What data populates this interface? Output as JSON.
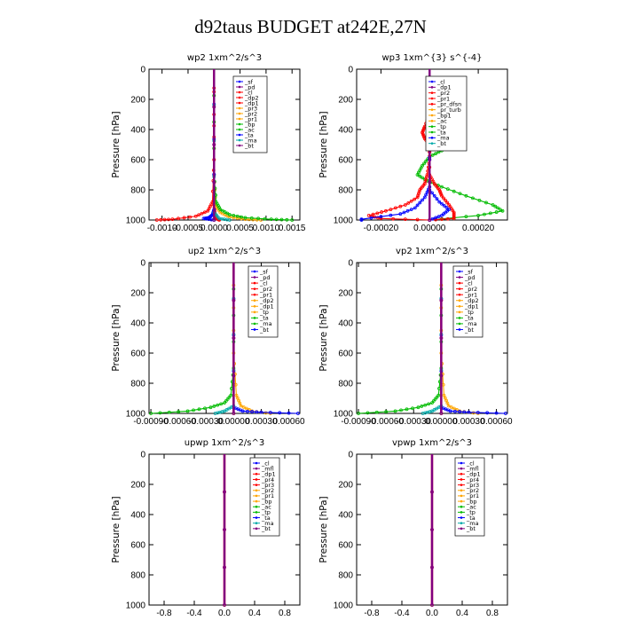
{
  "title": "d92taus  BUDGET at242E,27N",
  "chart_data": [
    {
      "type": "line",
      "title": "wp2   1xm^2/s^3",
      "ylabel": "Pressure [hPa]",
      "ylim": [
        1000,
        0
      ],
      "y_ticks": [
        "0",
        "200",
        "400",
        "600",
        "800",
        "1000"
      ],
      "xlim": [
        -0.00125,
        0.00165
      ],
      "x_ticks": [
        {
          "value": -0.001,
          "label": "-0.0010"
        },
        {
          "value": -0.0005,
          "label": "-0.0005"
        },
        {
          "value": 0.0,
          "label": "0.0000"
        },
        {
          "value": 0.0005,
          "label": "0.0005"
        },
        {
          "value": 0.001,
          "label": "0.0010"
        },
        {
          "value": 0.0015,
          "label": "0.0015"
        }
      ],
      "legend": [
        "_sf",
        "_pd",
        "_cl",
        "_dp2",
        "_dp1",
        "_pr3",
        "_pr2",
        "_pr1",
        "_bp",
        "_ac",
        "_ta",
        "_ma",
        "_bt"
      ],
      "series": [
        {
          "name": "_sf",
          "color": "#ff0000",
          "points": [
            [
              0,
              0
            ],
            [
              0,
              500
            ],
            [
              0,
              900
            ],
            [
              2e-05,
              960
            ],
            [
              5e-05,
              990
            ],
            [
              0.0001,
              1000
            ]
          ]
        },
        {
          "name": "_dp2",
          "color": "#ff0000",
          "points": [
            [
              0,
              0
            ],
            [
              0,
              600
            ],
            [
              -3e-05,
              880
            ],
            [
              -0.00012,
              940
            ],
            [
              -0.00035,
              975
            ],
            [
              -0.0008,
              995
            ],
            [
              -0.0011,
              1000
            ]
          ]
        },
        {
          "name": "_pr2",
          "color": "#ffa500",
          "points": [
            [
              0,
              0
            ],
            [
              0,
              700
            ],
            [
              3e-05,
              900
            ],
            [
              0.00012,
              950
            ],
            [
              0.0003,
              980
            ],
            [
              0.0006,
              995
            ],
            [
              0.0009,
              1000
            ]
          ]
        },
        {
          "name": "_bp",
          "color": "#00bb00",
          "points": [
            [
              0,
              0
            ],
            [
              0,
              700
            ],
            [
              4e-05,
              880
            ],
            [
              0.00012,
              930
            ],
            [
              0.0003,
              965
            ],
            [
              0.0006,
              985
            ],
            [
              0.0011,
              995
            ],
            [
              0.0015,
              1000
            ]
          ]
        },
        {
          "name": "_ac",
          "color": "#0000ff",
          "points": [
            [
              0,
              0
            ],
            [
              0,
              930
            ],
            [
              -3e-05,
              965
            ],
            [
              -0.0001,
              985
            ],
            [
              -0.0002,
              990
            ],
            [
              0,
              1000
            ]
          ]
        },
        {
          "name": "_ta",
          "color": "#00aaaa",
          "points": [
            [
              0,
              0
            ],
            [
              0,
              950
            ],
            [
              0.0001,
              990
            ],
            [
              0.0003,
              1000
            ]
          ]
        },
        {
          "name": "_bt",
          "color": "#800080",
          "points": [
            [
              0,
              0
            ],
            [
              0,
              1000
            ]
          ]
        }
      ]
    },
    {
      "type": "line",
      "title": "wp3   1xm^{3} s^{-4}",
      "ylabel": "Pressure [hPa]",
      "ylim": [
        1000,
        0
      ],
      "y_ticks": [
        "0",
        "200",
        "400",
        "600",
        "800",
        "1000"
      ],
      "xlim": [
        -0.0003,
        0.00032
      ],
      "x_ticks": [
        {
          "value": -0.0002,
          "label": "-0.00020"
        },
        {
          "value": 0.0,
          "label": "0.00000"
        },
        {
          "value": 0.0002,
          "label": "0.00020"
        }
      ],
      "legend": [
        "_cl",
        "_dp1",
        "_pr2",
        "_pr1",
        "_pr_dfsn",
        "_pr_turb",
        "_bp1",
        "_ac",
        "_tp",
        "_ta",
        "_ma",
        "_bt"
      ],
      "series": [
        {
          "name": "_bp1",
          "color": "#00bb00",
          "points": [
            [
              0,
              0
            ],
            [
              0,
              380
            ],
            [
              4e-05,
              440
            ],
            [
              8e-05,
              480
            ],
            [
              0.0001,
              500
            ],
            [
              5e-05,
              540
            ],
            [
              0,
              580
            ],
            [
              -3e-05,
              640
            ],
            [
              -5e-05,
              700
            ],
            [
              -1e-05,
              740
            ],
            [
              5e-05,
              780
            ],
            [
              0.00015,
              840
            ],
            [
              0.00026,
              900
            ],
            [
              0.0003,
              940
            ],
            [
              0.0002,
              970
            ],
            [
              0,
              1000
            ]
          ]
        },
        {
          "name": "_pr2",
          "color": "#ff0000",
          "points": [
            [
              0,
              0
            ],
            [
              0,
              300
            ],
            [
              -2e-05,
              380
            ],
            [
              -3e-05,
              420
            ],
            [
              -2e-05,
              460
            ],
            [
              0,
              500
            ],
            [
              0,
              600
            ],
            [
              -1e-05,
              700
            ],
            [
              -2e-05,
              760
            ],
            [
              -4e-05,
              800
            ],
            [
              -5e-05,
              850
            ],
            [
              -0.0001,
              900
            ],
            [
              -0.00018,
              940
            ],
            [
              -0.00025,
              970
            ],
            [
              -0.0002,
              990
            ],
            [
              0,
              1000
            ]
          ]
        },
        {
          "name": "_pr1",
          "color": "#ff0000",
          "points": [
            [
              0,
              0
            ],
            [
              0,
              300
            ],
            [
              2e-05,
              380
            ],
            [
              3e-05,
              420
            ],
            [
              2e-05,
              460
            ],
            [
              0,
              500
            ],
            [
              0,
              700
            ],
            [
              2e-05,
              760
            ],
            [
              4e-05,
              800
            ],
            [
              5e-05,
              840
            ],
            [
              8e-05,
              900
            ],
            [
              0.0001,
              950
            ],
            [
              0.0001,
              990
            ],
            [
              0,
              1000
            ]
          ]
        },
        {
          "name": "_ac",
          "color": "#0000ff",
          "points": [
            [
              0,
              0
            ],
            [
              0,
              780
            ],
            [
              -2e-05,
              850
            ],
            [
              -6e-05,
              920
            ],
            [
              -0.00012,
              960
            ],
            [
              -0.00028,
              995
            ],
            [
              -0.00028,
              1000
            ]
          ]
        },
        {
          "name": "_tp",
          "color": "#0000ff",
          "points": [
            [
              0,
              0
            ],
            [
              0,
              800
            ],
            [
              4e-05,
              880
            ],
            [
              8e-05,
              930
            ],
            [
              5e-05,
              970
            ],
            [
              0,
              1000
            ]
          ]
        },
        {
          "name": "_bt",
          "color": "#800080",
          "points": [
            [
              0,
              0
            ],
            [
              0,
              1000
            ]
          ]
        }
      ]
    },
    {
      "type": "line",
      "title": "up2   1xm^2/s^3",
      "ylabel": "Pressure [hPa]",
      "ylim": [
        1000,
        0
      ],
      "y_ticks": [
        "0",
        "200",
        "400",
        "600",
        "800",
        "1000"
      ],
      "xlim": [
        -0.00092,
        0.00072
      ],
      "x_ticks": [
        {
          "value": -0.0009,
          "label": "-0.00090"
        },
        {
          "value": -0.0006,
          "label": "-0.00060"
        },
        {
          "value": -0.0003,
          "label": "-0.00030"
        },
        {
          "value": 0.0,
          "label": "0.00000"
        },
        {
          "value": 0.0003,
          "label": "0.00030"
        },
        {
          "value": 0.0006,
          "label": "0.00060"
        }
      ],
      "legend": [
        "_sf",
        "_pd",
        "_cl",
        "_pr2",
        "_pr1",
        "_dp2",
        "_dp1",
        "_tp",
        "_ta",
        "_ma",
        "_bt"
      ],
      "series": [
        {
          "name": "_sf",
          "color": "#ff0000",
          "points": [
            [
              0,
              0
            ],
            [
              0,
              1000
            ]
          ]
        },
        {
          "name": "_pr2",
          "color": "#ffa500",
          "points": [
            [
              0,
              0
            ],
            [
              0,
              600
            ],
            [
              3e-05,
              880
            ],
            [
              8e-05,
              950
            ],
            [
              0.0002,
              985
            ],
            [
              0.0004,
              1000
            ]
          ]
        },
        {
          "name": "_dp2",
          "color": "#00bb00",
          "points": [
            [
              0,
              0
            ],
            [
              0,
              700
            ],
            [
              -3e-05,
              880
            ],
            [
              -0.0001,
              930
            ],
            [
              -0.00025,
              960
            ],
            [
              -0.0005,
              985
            ],
            [
              -0.0009,
              1000
            ]
          ]
        },
        {
          "name": "_tp",
          "color": "#0000ff",
          "points": [
            [
              0,
              0
            ],
            [
              0,
              960
            ],
            [
              0.0001,
              985
            ],
            [
              0.0003,
              992
            ],
            [
              0.0007,
              1000
            ]
          ]
        },
        {
          "name": "_ta",
          "color": "#00aaaa",
          "points": [
            [
              0,
              0
            ],
            [
              0,
              950
            ],
            [
              -0.0001,
              985
            ],
            [
              -0.0002,
              1000
            ]
          ]
        },
        {
          "name": "_bt",
          "color": "#800080",
          "points": [
            [
              0,
              0
            ],
            [
              0,
              1000
            ]
          ]
        }
      ]
    },
    {
      "type": "line",
      "title": "vp2   1xm^2/s^3",
      "ylabel": "Pressure [hPa]",
      "ylim": [
        1000,
        0
      ],
      "y_ticks": [
        "0",
        "200",
        "400",
        "600",
        "800",
        "1000"
      ],
      "xlim": [
        -0.00092,
        0.00072
      ],
      "x_ticks": [
        {
          "value": -0.0009,
          "label": "-0.00090"
        },
        {
          "value": -0.0006,
          "label": "-0.00060"
        },
        {
          "value": -0.0003,
          "label": "-0.00030"
        },
        {
          "value": 0.0,
          "label": "0.00000"
        },
        {
          "value": 0.0003,
          "label": "0.00030"
        },
        {
          "value": 0.0006,
          "label": "0.00060"
        }
      ],
      "legend": [
        "_sf",
        "_pd",
        "_cl",
        "_pr2",
        "_pr1",
        "_dp2",
        "_dp1",
        "_tp",
        "_ta",
        "_ma",
        "_bt"
      ],
      "series": [
        {
          "name": "_sf",
          "color": "#ff0000",
          "points": [
            [
              0,
              0
            ],
            [
              0,
              1000
            ]
          ]
        },
        {
          "name": "_pr2",
          "color": "#ffa500",
          "points": [
            [
              0,
              0
            ],
            [
              0,
              600
            ],
            [
              3e-05,
              880
            ],
            [
              8e-05,
              950
            ],
            [
              0.0002,
              985
            ],
            [
              0.0004,
              1000
            ]
          ]
        },
        {
          "name": "_dp2",
          "color": "#00bb00",
          "points": [
            [
              0,
              0
            ],
            [
              0,
              700
            ],
            [
              -3e-05,
              880
            ],
            [
              -0.0001,
              930
            ],
            [
              -0.00025,
              960
            ],
            [
              -0.0005,
              985
            ],
            [
              -0.0009,
              1000
            ]
          ]
        },
        {
          "name": "_tp",
          "color": "#0000ff",
          "points": [
            [
              0,
              0
            ],
            [
              0,
              960
            ],
            [
              0.0001,
              985
            ],
            [
              0.0003,
              992
            ],
            [
              0.0007,
              1000
            ]
          ]
        },
        {
          "name": "_ta",
          "color": "#00aaaa",
          "points": [
            [
              0,
              0
            ],
            [
              0,
              950
            ],
            [
              -0.0001,
              985
            ],
            [
              -0.0002,
              1000
            ]
          ]
        },
        {
          "name": "_bt",
          "color": "#800080",
          "points": [
            [
              0,
              0
            ],
            [
              0,
              1000
            ]
          ]
        }
      ]
    },
    {
      "type": "line",
      "title": "upwp   1xm^2/s^3",
      "ylabel": "Pressure [hPa]",
      "ylim": [
        1000,
        0
      ],
      "y_ticks": [
        "0",
        "200",
        "400",
        "600",
        "800",
        "1000"
      ],
      "xlim": [
        -1.0,
        1.0
      ],
      "x_ticks": [
        {
          "value": -0.8,
          "label": "-0.8"
        },
        {
          "value": -0.4,
          "label": "-0.4"
        },
        {
          "value": 0.0,
          "label": "0.0"
        },
        {
          "value": 0.4,
          "label": "0.4"
        },
        {
          "value": 0.8,
          "label": "0.8"
        }
      ],
      "legend": [
        "_cl",
        "_mfl",
        "_dp1",
        "_pr4",
        "_pr3",
        "_pr2",
        "_pr1",
        "_bp",
        "_ac",
        "_tp",
        "_ta",
        "_ma",
        "_bt"
      ],
      "series": [
        {
          "name": "_dp1",
          "color": "#ff0000",
          "points": [
            [
              0,
              0
            ],
            [
              0,
              1000
            ]
          ]
        },
        {
          "name": "_bt",
          "color": "#800080",
          "points": [
            [
              0,
              0
            ],
            [
              0,
              1000
            ]
          ]
        }
      ]
    },
    {
      "type": "line",
      "title": "vpwp   1xm^2/s^3",
      "ylabel": "Pressure [hPa]",
      "ylim": [
        1000,
        0
      ],
      "y_ticks": [
        "0",
        "200",
        "400",
        "600",
        "800",
        "1000"
      ],
      "xlim": [
        -1.0,
        1.0
      ],
      "x_ticks": [
        {
          "value": -0.8,
          "label": "-0.8"
        },
        {
          "value": -0.4,
          "label": "-0.4"
        },
        {
          "value": 0.0,
          "label": "0.0"
        },
        {
          "value": 0.4,
          "label": "0.4"
        },
        {
          "value": 0.8,
          "label": "0.8"
        }
      ],
      "legend": [
        "_cl",
        "_mfl",
        "_dp1",
        "_pr4",
        "_pr3",
        "_pr2",
        "_pr1",
        "_bp",
        "_ac",
        "_tp",
        "_ta",
        "_ma",
        "_bt"
      ],
      "series": [
        {
          "name": "_dp1",
          "color": "#ff0000",
          "points": [
            [
              0,
              0
            ],
            [
              0,
              1000
            ]
          ]
        },
        {
          "name": "_bt",
          "color": "#800080",
          "points": [
            [
              0,
              0
            ],
            [
              0,
              1000
            ]
          ]
        }
      ]
    }
  ]
}
